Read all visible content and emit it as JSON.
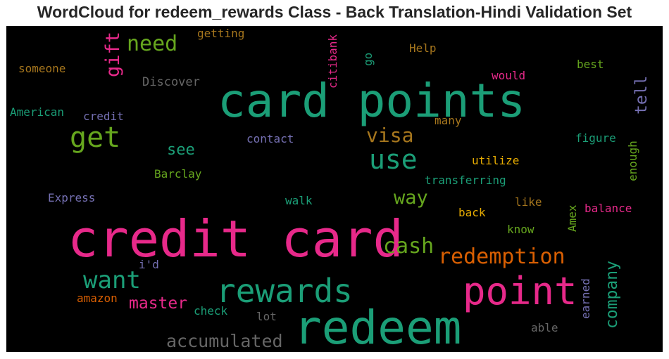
{
  "title": "WordCloud for redeem_rewards Class - Back Translation-Hindi Validation Set",
  "words": [
    {
      "key": "card_points",
      "text": "card points",
      "color": "#1b9e77"
    },
    {
      "key": "credit_card",
      "text": "credit card",
      "color": "#e7298a"
    },
    {
      "key": "redeem",
      "text": "redeem",
      "color": "#1b9e77"
    },
    {
      "key": "point",
      "text": "point",
      "color": "#e7298a"
    },
    {
      "key": "rewards",
      "text": "rewards",
      "color": "#1b9e77"
    },
    {
      "key": "get",
      "text": "get",
      "color": "#66a61e"
    },
    {
      "key": "use",
      "text": "use",
      "color": "#1b9e77"
    },
    {
      "key": "need",
      "text": "need",
      "color": "#66a61e"
    },
    {
      "key": "gift",
      "text": "gift",
      "color": "#e7298a"
    },
    {
      "key": "want",
      "text": "want",
      "color": "#1b9e77"
    },
    {
      "key": "cash",
      "text": "cash",
      "color": "#66a61e"
    },
    {
      "key": "redemption",
      "text": "redemption",
      "color": "#d95f02"
    },
    {
      "key": "visa",
      "text": "visa",
      "color": "#a6761d"
    },
    {
      "key": "way",
      "text": "way",
      "color": "#66a61e"
    },
    {
      "key": "accumulated",
      "text": "accumulated",
      "color": "#666666"
    },
    {
      "key": "master",
      "text": "master",
      "color": "#e7298a"
    },
    {
      "key": "company",
      "text": "company",
      "color": "#1b9e77"
    },
    {
      "key": "tell",
      "text": "tell",
      "color": "#7570b3"
    },
    {
      "key": "see",
      "text": "see",
      "color": "#1b9e77"
    },
    {
      "key": "getting",
      "text": "getting",
      "color": "#a6761d"
    },
    {
      "key": "citibank",
      "text": "citibank",
      "color": "#e7298a"
    },
    {
      "key": "go",
      "text": "go",
      "color": "#1b9e77"
    },
    {
      "key": "help",
      "text": "Help",
      "color": "#a6761d"
    },
    {
      "key": "best",
      "text": "best",
      "color": "#66a61e"
    },
    {
      "key": "someone",
      "text": "someone",
      "color": "#a6761d"
    },
    {
      "key": "discover",
      "text": "Discover",
      "color": "#666666"
    },
    {
      "key": "would",
      "text": "would",
      "color": "#e7298a"
    },
    {
      "key": "american",
      "text": "American",
      "color": "#1b9e77"
    },
    {
      "key": "credit",
      "text": "credit",
      "color": "#7570b3"
    },
    {
      "key": "many",
      "text": "many",
      "color": "#a6761d"
    },
    {
      "key": "contact",
      "text": "contact",
      "color": "#7570b3"
    },
    {
      "key": "figure",
      "text": "figure",
      "color": "#1b9e77"
    },
    {
      "key": "utilize",
      "text": "utilize",
      "color": "#e6ab02"
    },
    {
      "key": "enough",
      "text": "enough",
      "color": "#66a61e"
    },
    {
      "key": "barclay",
      "text": "Barclay",
      "color": "#66a61e"
    },
    {
      "key": "transferring",
      "text": "transferring",
      "color": "#1b9e77"
    },
    {
      "key": "express",
      "text": "Express",
      "color": "#7570b3"
    },
    {
      "key": "walk",
      "text": "walk",
      "color": "#1b9e77"
    },
    {
      "key": "like",
      "text": "like",
      "color": "#a6761d"
    },
    {
      "key": "amex",
      "text": "Amex",
      "color": "#66a61e"
    },
    {
      "key": "balance",
      "text": "balance",
      "color": "#e7298a"
    },
    {
      "key": "back",
      "text": "back",
      "color": "#e6ab02"
    },
    {
      "key": "know",
      "text": "know",
      "color": "#66a61e"
    },
    {
      "key": "id",
      "text": "i'd",
      "color": "#7570b3"
    },
    {
      "key": "amazon",
      "text": "amazon",
      "color": "#d95f02"
    },
    {
      "key": "check",
      "text": "check",
      "color": "#1b9e77"
    },
    {
      "key": "lot",
      "text": "lot",
      "color": "#666666"
    },
    {
      "key": "earned",
      "text": "earned",
      "color": "#7570b3"
    },
    {
      "key": "able",
      "text": "able",
      "color": "#666666"
    }
  ]
}
